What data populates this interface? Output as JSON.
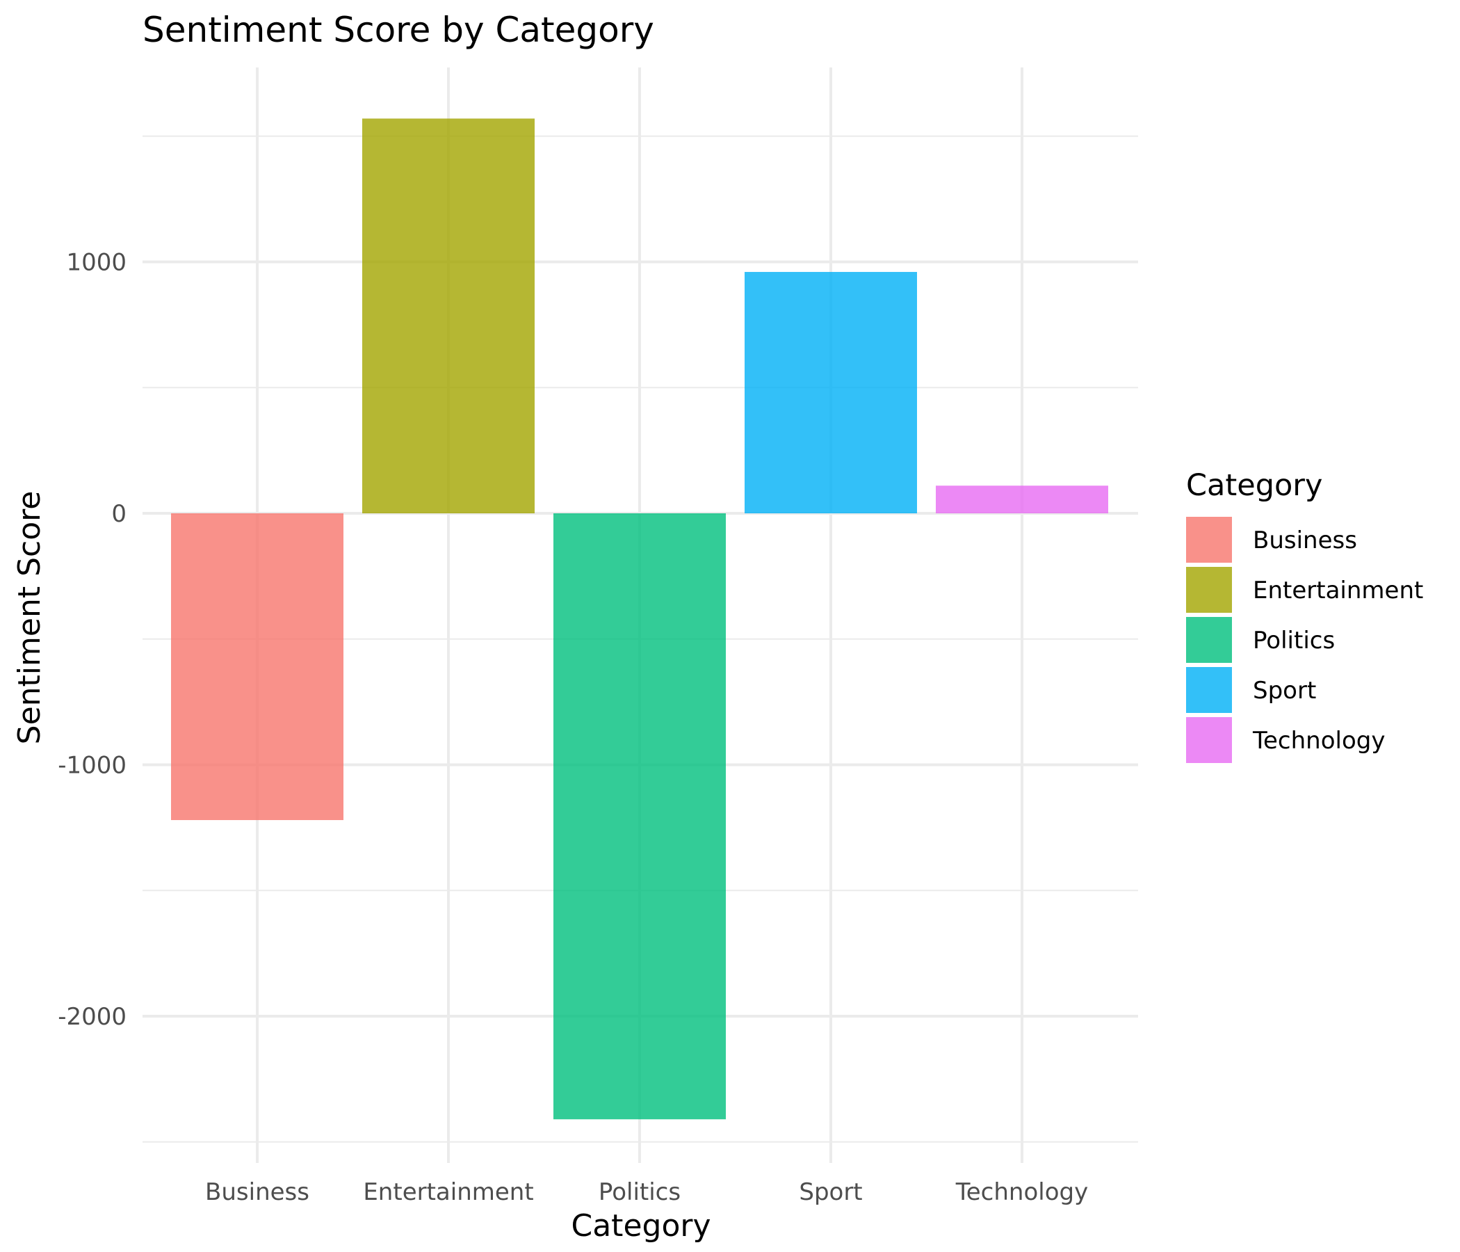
{
  "chart_data": {
    "type": "bar",
    "title": "Sentiment Score by Category",
    "xlabel": "Category",
    "ylabel": "Sentiment Score",
    "categories": [
      "Business",
      "Entertainment",
      "Politics",
      "Sport",
      "Technology"
    ],
    "values": [
      -1220,
      1570,
      -2410,
      960,
      110
    ],
    "colors": [
      "#F8766D",
      "#A3A500",
      "#00BF7D",
      "#00B0F6",
      "#E76BF3"
    ],
    "bar_opacity": 0.8,
    "ylim": [
      -2500,
      1500
    ],
    "yticks": [
      -2000,
      -1000,
      0,
      1000
    ],
    "ytick_labels": [
      "-2000",
      "-1000",
      "0",
      "1000"
    ],
    "grid": true,
    "legend": {
      "title": "Category",
      "position": "right",
      "entries": [
        "Business",
        "Entertainment",
        "Politics",
        "Sport",
        "Technology"
      ]
    }
  }
}
